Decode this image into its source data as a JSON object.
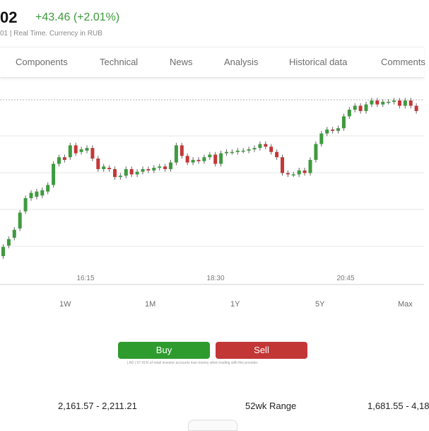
{
  "header": {
    "price": "02",
    "change": "+43.46 (+2.01%)",
    "subinfo": "01 | Real Time. Currency in RUB"
  },
  "tabs": [
    {
      "label": "Components"
    },
    {
      "label": "Technical"
    },
    {
      "label": "News"
    },
    {
      "label": "Analysis"
    },
    {
      "label": "Historical data"
    },
    {
      "label": "Comments"
    }
  ],
  "chart_data": {
    "type": "candlestick",
    "x_tick_labels": [
      "16:15",
      "18:30",
      "20:45"
    ],
    "grid": true,
    "colors": {
      "up": "#3f9a3f",
      "down": "#c43838",
      "wick": "#666666",
      "grid": "#e6e6e6"
    },
    "candles": [
      {
        "o": 0.0,
        "c": 0.07
      },
      {
        "o": 0.08,
        "c": 0.13
      },
      {
        "o": 0.14,
        "c": 0.2
      },
      {
        "o": 0.21,
        "c": 0.33
      },
      {
        "o": 0.34,
        "c": 0.44
      },
      {
        "o": 0.44,
        "c": 0.48
      },
      {
        "o": 0.45,
        "c": 0.49
      },
      {
        "o": 0.46,
        "c": 0.5
      },
      {
        "o": 0.49,
        "c": 0.54
      },
      {
        "o": 0.54,
        "c": 0.7
      },
      {
        "o": 0.7,
        "c": 0.75
      },
      {
        "o": 0.75,
        "c": 0.73
      },
      {
        "o": 0.75,
        "c": 0.84
      },
      {
        "o": 0.84,
        "c": 0.78
      },
      {
        "o": 0.79,
        "c": 0.81
      },
      {
        "o": 0.8,
        "c": 0.82
      },
      {
        "o": 0.82,
        "c": 0.74
      },
      {
        "o": 0.74,
        "c": 0.66
      },
      {
        "o": 0.66,
        "c": 0.68
      },
      {
        "o": 0.67,
        "c": 0.66
      },
      {
        "o": 0.66,
        "c": 0.6
      },
      {
        "o": 0.6,
        "c": 0.61
      },
      {
        "o": 0.61,
        "c": 0.66
      },
      {
        "o": 0.66,
        "c": 0.62
      },
      {
        "o": 0.62,
        "c": 0.64
      },
      {
        "o": 0.64,
        "c": 0.66
      },
      {
        "o": 0.66,
        "c": 0.65
      },
      {
        "o": 0.65,
        "c": 0.67
      },
      {
        "o": 0.67,
        "c": 0.68
      },
      {
        "o": 0.68,
        "c": 0.66
      },
      {
        "o": 0.66,
        "c": 0.71
      },
      {
        "o": 0.71,
        "c": 0.84
      },
      {
        "o": 0.84,
        "c": 0.76
      },
      {
        "o": 0.76,
        "c": 0.71
      },
      {
        "o": 0.71,
        "c": 0.73
      },
      {
        "o": 0.73,
        "c": 0.72
      },
      {
        "o": 0.72,
        "c": 0.75
      },
      {
        "o": 0.75,
        "c": 0.77
      },
      {
        "o": 0.77,
        "c": 0.7
      },
      {
        "o": 0.7,
        "c": 0.78
      },
      {
        "o": 0.78,
        "c": 0.79
      },
      {
        "o": 0.79,
        "c": 0.79
      },
      {
        "o": 0.79,
        "c": 0.8
      },
      {
        "o": 0.8,
        "c": 0.8
      },
      {
        "o": 0.8,
        "c": 0.81
      },
      {
        "o": 0.81,
        "c": 0.82
      },
      {
        "o": 0.82,
        "c": 0.85
      },
      {
        "o": 0.85,
        "c": 0.83
      },
      {
        "o": 0.83,
        "c": 0.79
      },
      {
        "o": 0.79,
        "c": 0.75
      },
      {
        "o": 0.75,
        "c": 0.63
      },
      {
        "o": 0.63,
        "c": 0.62
      },
      {
        "o": 0.62,
        "c": 0.62
      },
      {
        "o": 0.62,
        "c": 0.65
      },
      {
        "o": 0.65,
        "c": 0.63
      },
      {
        "o": 0.63,
        "c": 0.73
      },
      {
        "o": 0.73,
        "c": 0.85
      },
      {
        "o": 0.85,
        "c": 0.93
      },
      {
        "o": 0.93,
        "c": 0.96
      },
      {
        "o": 0.96,
        "c": 0.95
      },
      {
        "o": 0.95,
        "c": 0.97
      },
      {
        "o": 0.97,
        "c": 1.06
      },
      {
        "o": 1.06,
        "c": 1.11
      },
      {
        "o": 1.11,
        "c": 1.14
      },
      {
        "o": 1.14,
        "c": 1.1
      },
      {
        "o": 1.1,
        "c": 1.15
      },
      {
        "o": 1.15,
        "c": 1.18
      },
      {
        "o": 1.18,
        "c": 1.15
      },
      {
        "o": 1.15,
        "c": 1.17
      },
      {
        "o": 1.17,
        "c": 1.17
      },
      {
        "o": 1.17,
        "c": 1.18
      },
      {
        "o": 1.18,
        "c": 1.14
      },
      {
        "o": 1.14,
        "c": 1.18
      },
      {
        "o": 1.18,
        "c": 1.14
      },
      {
        "o": 1.14,
        "c": 1.1
      }
    ]
  },
  "ranges": [
    {
      "label": "1W"
    },
    {
      "label": "1M"
    },
    {
      "label": "1Y"
    },
    {
      "label": "5Y"
    },
    {
      "label": "Max"
    }
  ],
  "actions": {
    "buy": "Buy",
    "sell": "Sell",
    "disclaimer": "| AD | 97.41% of retail investor accounts lose money when trading with this provider."
  },
  "stats": {
    "day_range": "2,161.57 - 2,211.21",
    "wk52_label": "52wk Range",
    "wk52_value": "1,681.55 - 4,18"
  }
}
